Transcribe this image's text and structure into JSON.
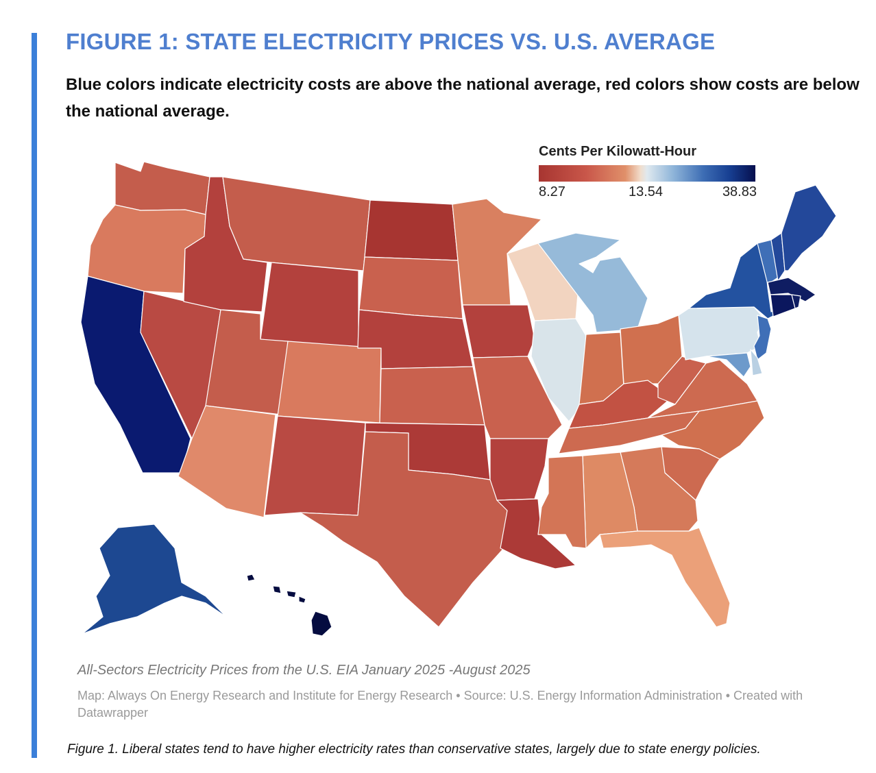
{
  "figure": {
    "title": "FIGURE 1: STATE ELECTRICITY PRICES VS. U.S. AVERAGE",
    "subtitle": "Blue colors indicate electricity costs are above the national average, red colors show costs are below the national average.",
    "caption": "Figure 1. Liberal states tend to have higher electricity rates than conservative states, largely due to state energy policies."
  },
  "legend": {
    "title": "Cents Per Kilowatt-Hour",
    "min_label": "8.27",
    "mid_label": "13.54",
    "max_label": "38.83",
    "color_low": "#a73531",
    "color_mid": "#dfe9ef",
    "color_high": "#060f4e"
  },
  "notes": {
    "source_line": "All-Sectors Electricity Prices from the U.S. EIA January 2025 -August 2025",
    "credit_line": "Map: Always On Energy Research and Institute for Energy Research • Source: U.S. Energy Information Administration • Created with Datawrapper"
  },
  "colors": {
    "accent": "#3b7fd9",
    "title": "#4f7fcf",
    "state_border": "#ffffff"
  },
  "map": {
    "type": "choropleth",
    "scale": {
      "min": 8.27,
      "mid": 13.54,
      "max": 38.83,
      "unit": "cents/kWh"
    },
    "states": {
      "WA": "#c45d4c",
      "OR": "#d97a5e",
      "CA": "#0a1a70",
      "NV": "#b94a43",
      "ID": "#b3413d",
      "MT": "#c45d4c",
      "WY": "#b3413d",
      "UT": "#c45d4c",
      "AZ": "#e0896a",
      "CO": "#d97a5e",
      "NM": "#b94a43",
      "ND": "#a73531",
      "SD": "#c9614e",
      "NE": "#b3413d",
      "KS": "#c9614e",
      "OK": "#ac3a37",
      "TX": "#c45d4c",
      "MN": "#d98060",
      "IA": "#b3413d",
      "MO": "#c9614e",
      "AR": "#b3413d",
      "LA": "#ac3a37",
      "WI": "#f2d4c0",
      "IL": "#d9e4ea",
      "MI": "#96bad9",
      "IN": "#d0704f",
      "OH": "#d0704f",
      "KY": "#c25243",
      "TN": "#cd6a50",
      "MS": "#d37556",
      "AL": "#de8a64",
      "GA": "#d57a5a",
      "FL": "#eba079",
      "SC": "#cd6a50",
      "NC": "#d0704f",
      "VA": "#cd6a50",
      "WV": "#c9614e",
      "PA": "#d5e3ec",
      "NY": "#2352a0",
      "NJ": "#3f6fb7",
      "DE": "#b9d0e3",
      "MD": "#6d9acb",
      "VT": "#3f6fb7",
      "NH": "#23489a",
      "ME": "#23489a",
      "MA": "#0f1d62",
      "CT": "#0b175e",
      "RI": "#0f1d62",
      "AK": "#1d4891",
      "HI": "#050c40"
    }
  }
}
